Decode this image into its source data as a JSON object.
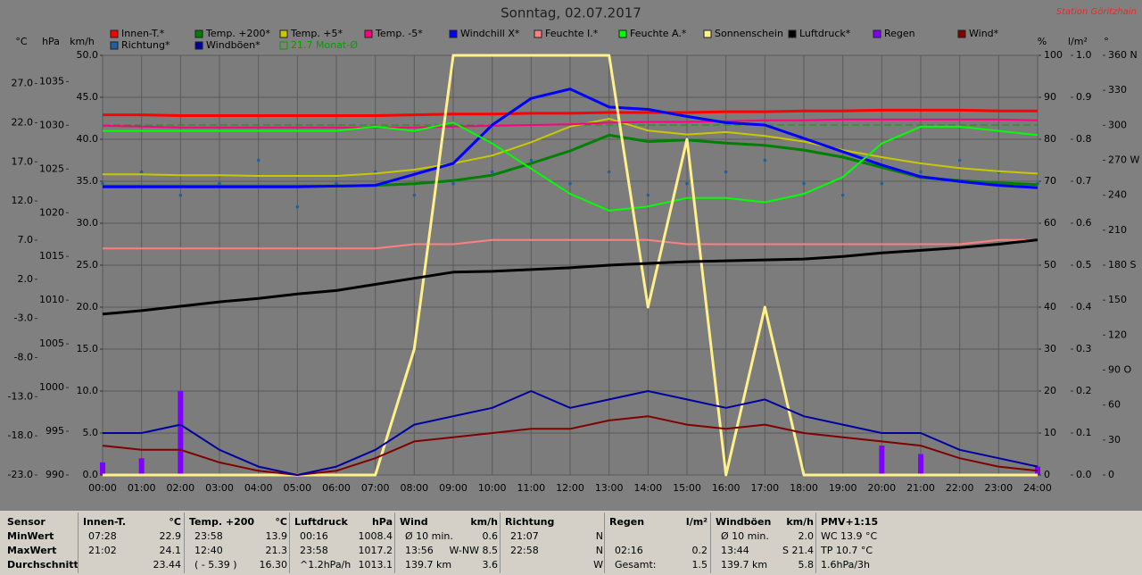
{
  "chart_data": {
    "type": "line",
    "title": "Sonntag, 02.07.2017",
    "subtitle": "Station Göritzhain",
    "x": [
      0,
      1,
      2,
      3,
      4,
      5,
      6,
      7,
      8,
      9,
      10,
      11,
      12,
      13,
      14,
      15,
      16,
      17,
      18,
      19,
      20,
      21,
      22,
      23,
      24
    ],
    "xlim": [
      0,
      24
    ],
    "xticks": [
      {
        "value": 0,
        "label": "00:00"
      },
      {
        "value": 1,
        "label": "01:00"
      },
      {
        "value": 2,
        "label": "02:00"
      },
      {
        "value": 3,
        "label": "03:00"
      },
      {
        "value": 4,
        "label": "04:00"
      },
      {
        "value": 5,
        "label": "05:00"
      },
      {
        "value": 6,
        "label": "06:00"
      },
      {
        "value": 7,
        "label": "07:00"
      },
      {
        "value": 8,
        "label": "08:00"
      },
      {
        "value": 9,
        "label": "09:00"
      },
      {
        "value": 10,
        "label": "10:00"
      },
      {
        "value": 11,
        "label": "11:00"
      },
      {
        "value": 12,
        "label": "12:00"
      },
      {
        "value": 13,
        "label": "13:00"
      },
      {
        "value": 14,
        "label": "14:00"
      },
      {
        "value": 15,
        "label": "15:00"
      },
      {
        "value": 16,
        "label": "16:00"
      },
      {
        "value": 17,
        "label": "17:00"
      },
      {
        "value": 18,
        "label": "18:00"
      },
      {
        "value": 19,
        "label": "19:00"
      },
      {
        "value": 20,
        "label": "20:00"
      },
      {
        "value": 21,
        "label": "21:00"
      },
      {
        "value": 22,
        "label": "22:00"
      },
      {
        "value": 23,
        "label": "23:00"
      },
      {
        "value": 24,
        "label": "24:00"
      }
    ],
    "axes": [
      {
        "label": "°C",
        "side": "left",
        "lim": [
          -23,
          30.6
        ],
        "ticks": [
          {
            "value": -23,
            "label": "-23.0"
          },
          {
            "value": -18,
            "label": "-18.0"
          },
          {
            "value": -13,
            "label": "-13.0"
          },
          {
            "value": -8,
            "label": "-8.0"
          },
          {
            "value": -3,
            "label": "-3.0"
          },
          {
            "value": 2,
            "label": "2.0"
          },
          {
            "value": 7,
            "label": "7.0"
          },
          {
            "value": 12,
            "label": "12.0"
          },
          {
            "value": 17,
            "label": "17.0"
          },
          {
            "value": 22,
            "label": "22.0"
          },
          {
            "value": 27,
            "label": "27.0"
          }
        ]
      },
      {
        "label": "hPa",
        "side": "left",
        "lim": [
          990,
          1038
        ],
        "ticks": [
          990,
          995,
          1000,
          1005,
          1010,
          1015,
          1020,
          1025,
          1030,
          1035
        ]
      },
      {
        "label": "km/h",
        "side": "left",
        "lim": [
          0,
          50
        ],
        "grid": true,
        "ticks": [
          {
            "value": 0,
            "label": "0.0"
          },
          {
            "value": 5,
            "label": "5.0"
          },
          {
            "value": 10,
            "label": "10.0"
          },
          {
            "value": 15,
            "label": "15.0"
          },
          {
            "value": 20,
            "label": "20.0"
          },
          {
            "value": 25,
            "label": "25.0"
          },
          {
            "value": 30,
            "label": "30.0"
          },
          {
            "value": 35,
            "label": "35.0"
          },
          {
            "value": 40,
            "label": "40.0"
          },
          {
            "value": 45,
            "label": "45.0"
          },
          {
            "value": 50,
            "label": "50.0"
          }
        ]
      },
      {
        "label": "%",
        "side": "right",
        "lim": [
          0,
          100
        ],
        "ticks": [
          0,
          10,
          20,
          30,
          40,
          50,
          60,
          70,
          80,
          90,
          100
        ]
      },
      {
        "label": "l/m²",
        "side": "right",
        "lim": [
          0,
          1
        ],
        "ticks": [
          {
            "value": 0,
            "label": "0.0"
          },
          0.1,
          0.2,
          0.3,
          0.4,
          0.5,
          0.6,
          0.7,
          0.8,
          0.9,
          {
            "value": 1,
            "label": "1.0"
          }
        ]
      },
      {
        "label": "°",
        "side": "right",
        "lim": [
          0,
          360
        ],
        "ticks": [
          0,
          30,
          60,
          {
            "value": 90,
            "label": "90 O"
          },
          120,
          150,
          {
            "value": 180,
            "label": "180 S"
          },
          210,
          240,
          {
            "value": 270,
            "label": "270 W"
          },
          300,
          330,
          {
            "value": 360,
            "label": "360 N"
          }
        ]
      }
    ],
    "series": [
      {
        "name": "Innen-T.*",
        "color": "#ff0000",
        "axis": 0,
        "style": "line",
        "width": 3,
        "values": [
          23.0,
          23.0,
          22.9,
          22.9,
          22.9,
          22.9,
          22.9,
          22.9,
          23.0,
          23.1,
          23.1,
          23.2,
          23.2,
          23.3,
          23.3,
          23.3,
          23.4,
          23.4,
          23.5,
          23.5,
          23.6,
          23.6,
          23.6,
          23.5,
          23.5
        ]
      },
      {
        "name": "Temp. +200*",
        "color": "#008000",
        "axis": 0,
        "style": "line",
        "width": 3,
        "values": [
          13.9,
          13.9,
          13.9,
          13.9,
          13.9,
          13.9,
          13.9,
          14.0,
          14.2,
          14.6,
          15.3,
          16.8,
          18.4,
          20.4,
          19.6,
          19.8,
          19.4,
          19.1,
          18.5,
          17.6,
          16.3,
          15.0,
          14.6,
          14.3,
          14.1
        ]
      },
      {
        "name": "Temp. +5*",
        "color": "#c8c800",
        "axis": 0,
        "style": "line",
        "width": 2,
        "values": [
          15.4,
          15.4,
          15.3,
          15.3,
          15.2,
          15.2,
          15.2,
          15.5,
          16.0,
          16.8,
          17.8,
          19.5,
          21.5,
          22.5,
          21.0,
          20.5,
          20.8,
          20.3,
          19.6,
          18.5,
          17.6,
          16.8,
          16.2,
          15.8,
          15.5
        ]
      },
      {
        "name": "Temp. -5*",
        "color": "#ff0080",
        "axis": 0,
        "style": "line",
        "width": 2,
        "values": [
          21.6,
          21.5,
          21.4,
          21.4,
          21.4,
          21.4,
          21.4,
          21.4,
          21.4,
          21.5,
          21.6,
          21.7,
          21.8,
          22.0,
          22.1,
          22.1,
          22.2,
          22.3,
          22.3,
          22.4,
          22.4,
          22.4,
          22.4,
          22.4,
          22.3
        ]
      },
      {
        "name": "Windchill X*",
        "color": "#0000ff",
        "axis": 0,
        "style": "line",
        "width": 3,
        "values": [
          13.8,
          13.8,
          13.8,
          13.8,
          13.8,
          13.8,
          13.9,
          14.0,
          15.4,
          16.8,
          21.7,
          25.1,
          26.3,
          24.0,
          23.7,
          22.8,
          22.0,
          21.7,
          20.0,
          18.3,
          16.6,
          15.1,
          14.5,
          14.0,
          13.7
        ]
      },
      {
        "name": "Feuchte I.*",
        "color": "#ff8080",
        "axis": 3,
        "style": "line",
        "width": 2,
        "values": [
          54,
          54,
          54,
          54,
          54,
          54,
          54,
          54,
          55,
          55,
          56,
          56,
          56,
          56,
          56,
          55,
          55,
          55,
          55,
          55,
          55,
          55,
          55,
          56,
          56
        ]
      },
      {
        "name": "Feuchte A.*",
        "color": "#00ff00",
        "axis": 3,
        "style": "line",
        "width": 2,
        "values": [
          82,
          82,
          82,
          82,
          82,
          82,
          82,
          83,
          82,
          84,
          79,
          73,
          67,
          63,
          64,
          66,
          66,
          65,
          67,
          71,
          79,
          83,
          83,
          82,
          81
        ]
      },
      {
        "name": "Sonnenschein",
        "color": "#fff08c",
        "axis": 3,
        "style": "line",
        "width": 3,
        "values": [
          0,
          0,
          0,
          0,
          0,
          0,
          0,
          0,
          30,
          100,
          100,
          100,
          100,
          100,
          40,
          80,
          0,
          40,
          0,
          0,
          0,
          0,
          0,
          0,
          0
        ]
      },
      {
        "name": "Luftdruck*",
        "color": "#000000",
        "axis": 1,
        "style": "line",
        "width": 3,
        "values": [
          1008.4,
          1008.8,
          1009.3,
          1009.8,
          1010.2,
          1010.7,
          1011.1,
          1011.8,
          1012.5,
          1013.2,
          1013.3,
          1013.5,
          1013.7,
          1014.0,
          1014.2,
          1014.4,
          1014.5,
          1014.6,
          1014.7,
          1015.0,
          1015.4,
          1015.7,
          1016.0,
          1016.4,
          1016.9
        ]
      },
      {
        "name": "Regen",
        "color": "#8000ff",
        "axis": 4,
        "style": "bars",
        "values": [
          0.03,
          0.04,
          0.2,
          0,
          0,
          0,
          0,
          0,
          0,
          0,
          0,
          0,
          0,
          0,
          0,
          0,
          0,
          0,
          0,
          0,
          0.07,
          0.05,
          0,
          0,
          0.02
        ]
      },
      {
        "name": "Wind*",
        "color": "#800000",
        "axis": 2,
        "style": "line",
        "width": 2,
        "values": [
          3.5,
          3,
          3,
          1.5,
          0.5,
          0,
          0.5,
          2,
          4,
          4.5,
          5,
          5.5,
          5.5,
          6.5,
          7,
          6,
          5.5,
          6,
          5,
          4.5,
          4,
          3.5,
          2,
          1,
          0.5
        ]
      },
      {
        "name": "Richtung*",
        "color": "#2060a0",
        "axis": 5,
        "style": "dots",
        "values": [
          250,
          260,
          240,
          250,
          270,
          230,
          250,
          260,
          240,
          250,
          260,
          270,
          250,
          260,
          240,
          250,
          260,
          270,
          250,
          240,
          250,
          260,
          270,
          260,
          250
        ]
      },
      {
        "name": "Windböen*",
        "color": "#0000a0",
        "axis": 2,
        "style": "line",
        "width": 2,
        "values": [
          5,
          5,
          6,
          3,
          1,
          0,
          1,
          3,
          6,
          7,
          8,
          10,
          8,
          9,
          10,
          9,
          8,
          9,
          7,
          6,
          5,
          5,
          3,
          2,
          1
        ]
      }
    ],
    "ref_lines": [
      {
        "name": "21.7 Monat-Ø",
        "value": 21.7,
        "axis": 0,
        "color": "#00a000"
      }
    ]
  },
  "stats": {
    "row_labels": [
      "Sensor",
      "MinWert",
      "MaxWert",
      "Durchschnitt"
    ],
    "columns": [
      {
        "name": "Innen-T.",
        "unit": "°C",
        "cells": [
          [
            "07:28",
            "22.9"
          ],
          [
            "21:02",
            "24.1"
          ],
          [
            null,
            "23.44"
          ]
        ]
      },
      {
        "name": "Temp. +200",
        "unit": "°C",
        "cells": [
          [
            "23:58",
            "13.9"
          ],
          [
            "12:40",
            "21.3"
          ],
          [
            "( - 5.39 )",
            "16.30"
          ]
        ]
      },
      {
        "name": "Luftdruck",
        "unit": "hPa",
        "cells": [
          [
            "00:16",
            "1008.4"
          ],
          [
            "23:58",
            "1017.2"
          ],
          [
            "^1.2hPa/h",
            "1013.1"
          ]
        ]
      },
      {
        "name": "Wind",
        "unit": "km/h",
        "cells": [
          [
            "Ø 10 min.",
            "0.6"
          ],
          [
            "13:56",
            "W-NW 8.5"
          ],
          [
            "139.7 km",
            "3.6"
          ]
        ]
      },
      {
        "name": "Richtung",
        "unit": null,
        "cells": [
          [
            "21:07",
            "N"
          ],
          [
            "22:58",
            "N"
          ],
          [
            null,
            "W"
          ]
        ]
      },
      {
        "name": "Regen",
        "unit": "l/m²",
        "cells": [
          [
            null,
            null
          ],
          [
            "02:16",
            "0.2"
          ],
          [
            "Gesamt:",
            "1.5"
          ]
        ]
      },
      {
        "name": "Windböen",
        "unit": "km/h",
        "cells": [
          [
            "Ø 10 min.",
            "2.0"
          ],
          [
            "13:44",
            "S 21.4"
          ],
          [
            "139.7 km",
            "5.8"
          ]
        ]
      },
      {
        "name": "PMV+1:15",
        "unit": null,
        "cells": [
          [
            "WC 13.9 °C"
          ],
          [
            "TP 10.7 °C"
          ],
          [
            "1.6hPa/3h"
          ]
        ]
      }
    ]
  }
}
